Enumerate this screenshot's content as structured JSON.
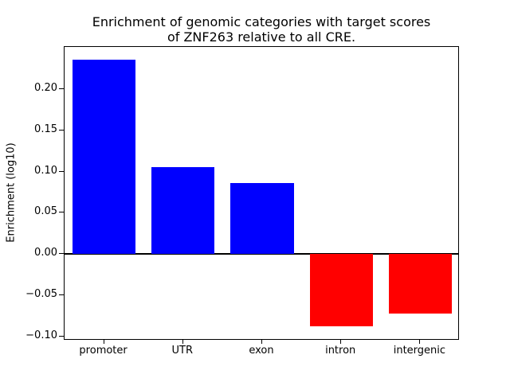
{
  "chart_data": {
    "type": "bar",
    "title": "Enrichment of genomic categories with target scores of ZNF263 relative to all CRE.",
    "title_lines": [
      "Enrichment of genomic categories with target scores",
      "of ZNF263 relative to all CRE."
    ],
    "xlabel": "",
    "ylabel": "Enrichment (log10)",
    "categories": [
      "promoter",
      "UTR",
      "exon",
      "intron",
      "intergenic"
    ],
    "values": [
      0.236,
      0.105,
      0.086,
      -0.088,
      -0.072
    ],
    "bar_colors": [
      "#0000ff",
      "#0000ff",
      "#0000ff",
      "#ff0000",
      "#ff0000"
    ],
    "positive_color": "#0000ff",
    "negative_color": "#ff0000",
    "yticks": [
      0.2,
      0.15,
      0.1,
      0.05,
      0.0,
      -0.05,
      -0.1
    ],
    "ytick_labels": [
      "0.20",
      "0.15",
      "0.10",
      "0.05",
      "0.00",
      "−0.05",
      "−0.10"
    ],
    "ylim": [
      -0.105,
      0.251
    ],
    "bar_width_fraction": 0.8,
    "grid": false,
    "zero_line": true,
    "legend": null,
    "frame": "box",
    "background_color": "#ffffff",
    "text_color": "#000000"
  }
}
